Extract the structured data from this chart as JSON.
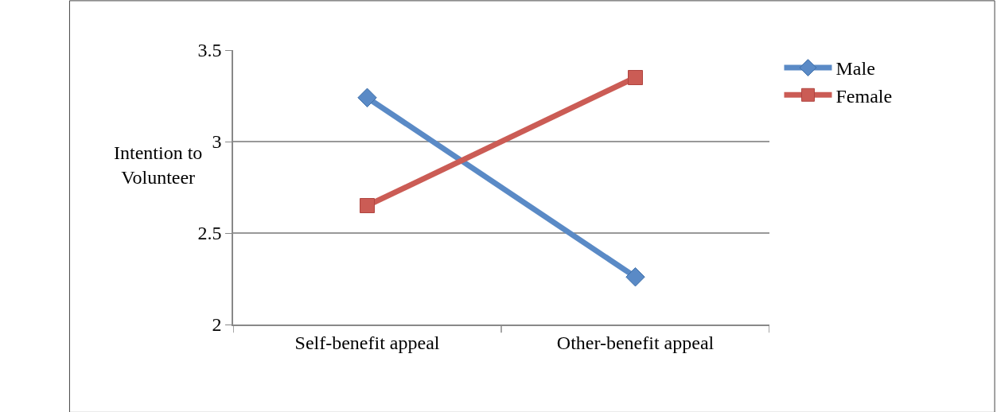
{
  "chart_data": {
    "type": "line",
    "ylabel": "Intention to Volunteer",
    "categories": [
      "Self-benefit appeal",
      "Other-benefit appeal"
    ],
    "series": [
      {
        "name": "Male",
        "color": "#5a8ac6",
        "values": [
          3.24,
          2.26
        ],
        "marker": "diamond"
      },
      {
        "name": "Female",
        "color": "#cb5c55",
        "values": [
          2.65,
          3.35
        ],
        "marker": "square"
      }
    ],
    "ylim": [
      2,
      3.5
    ],
    "yticks": [
      2,
      2.5,
      3,
      3.5
    ],
    "grid": "y",
    "legend": "right"
  }
}
